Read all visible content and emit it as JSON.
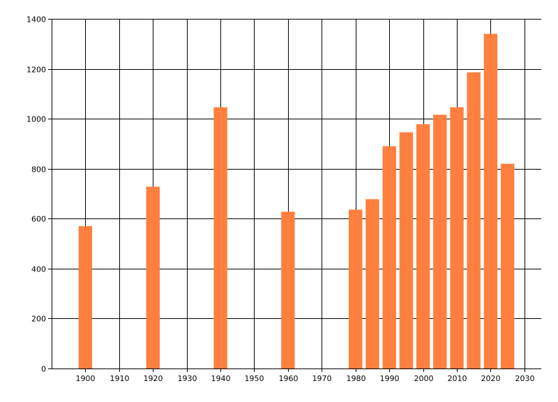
{
  "chart_data": {
    "type": "bar",
    "title": "",
    "xlabel": "",
    "ylabel": "",
    "x": [
      1900,
      1920,
      1940,
      1960,
      1980,
      1985,
      1990,
      1995,
      2000,
      2005,
      2010,
      2015,
      2020,
      2025
    ],
    "values": [
      570,
      728,
      1046,
      628,
      636,
      678,
      890,
      946,
      978,
      1016,
      1046,
      1186,
      1340,
      820
    ],
    "xlim": [
      1890,
      2035
    ],
    "ylim": [
      0,
      1400
    ],
    "xticks": [
      1900,
      1910,
      1920,
      1930,
      1940,
      1950,
      1960,
      1970,
      1980,
      1990,
      2000,
      2010,
      2020,
      2030
    ],
    "yticks": [
      0,
      200,
      400,
      600,
      800,
      1000,
      1200,
      1400
    ],
    "grid": true,
    "legend": "none",
    "bar_color": "#ff7f3f"
  }
}
